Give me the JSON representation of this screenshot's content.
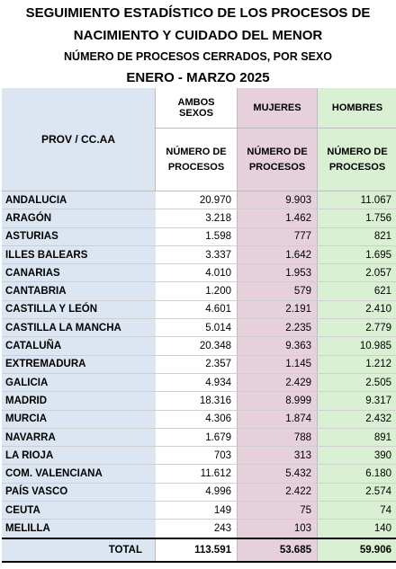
{
  "header": {
    "title_line1": "SEGUIMIENTO ESTADÍSTICO DE LOS PROCESOS  DE",
    "title_line2": "NACIMIENTO Y CUIDADO DEL MENOR",
    "subtitle": "NÚMERO DE PROCESOS CERRADOS, POR SEXO",
    "period": "ENERO - MARZO 2025"
  },
  "columns": {
    "prov": "PROV / CC.AA",
    "ambos_l1": "AMBOS",
    "ambos_l2": "SEXOS",
    "mujeres": "MUJERES",
    "hombres": "HOMBRES",
    "sub_l1": "NÚMERO DE",
    "sub_l2": "PROCESOS"
  },
  "colors": {
    "prov": "#dce6f2",
    "mujeres": "#e6d0dc",
    "hombres": "#d9f0d3"
  },
  "rows": [
    {
      "name": "ANDALUCIA",
      "ambos": "20.970",
      "mujeres": "9.903",
      "hombres": "11.067"
    },
    {
      "name": "ARAGÓN",
      "ambos": "3.218",
      "mujeres": "1.462",
      "hombres": "1.756"
    },
    {
      "name": "ASTURIAS",
      "ambos": "1.598",
      "mujeres": "777",
      "hombres": "821"
    },
    {
      "name": "ILLES BALEARS",
      "ambos": "3.337",
      "mujeres": "1.642",
      "hombres": "1.695"
    },
    {
      "name": "CANARIAS",
      "ambos": "4.010",
      "mujeres": "1.953",
      "hombres": "2.057"
    },
    {
      "name": "CANTABRIA",
      "ambos": "1.200",
      "mujeres": "579",
      "hombres": "621"
    },
    {
      "name": "CASTILLA Y LEÓN",
      "ambos": "4.601",
      "mujeres": "2.191",
      "hombres": "2.410"
    },
    {
      "name": "CASTILLA LA MANCHA",
      "ambos": "5.014",
      "mujeres": "2.235",
      "hombres": "2.779"
    },
    {
      "name": "CATALUÑA",
      "ambos": "20.348",
      "mujeres": "9.363",
      "hombres": "10.985"
    },
    {
      "name": "EXTREMADURA",
      "ambos": "2.357",
      "mujeres": "1.145",
      "hombres": "1.212"
    },
    {
      "name": "GALICIA",
      "ambos": "4.934",
      "mujeres": "2.429",
      "hombres": "2.505"
    },
    {
      "name": "MADRID",
      "ambos": "18.316",
      "mujeres": "8.999",
      "hombres": "9.317"
    },
    {
      "name": "MURCIA",
      "ambos": "4.306",
      "mujeres": "1.874",
      "hombres": "2.432"
    },
    {
      "name": "NAVARRA",
      "ambos": "1.679",
      "mujeres": "788",
      "hombres": "891"
    },
    {
      "name": "LA RIOJA",
      "ambos": "703",
      "mujeres": "313",
      "hombres": "390"
    },
    {
      "name": "COM. VALENCIANA",
      "ambos": "11.612",
      "mujeres": "5.432",
      "hombres": "6.180"
    },
    {
      "name": "PAÍS VASCO",
      "ambos": "4.996",
      "mujeres": "2.422",
      "hombres": "2.574"
    },
    {
      "name": "CEUTA",
      "ambos": "149",
      "mujeres": "75",
      "hombres": "74"
    },
    {
      "name": "MELILLA",
      "ambos": "243",
      "mujeres": "103",
      "hombres": "140"
    }
  ],
  "total": {
    "label": "TOTAL",
    "ambos": "113.591",
    "mujeres": "53.685",
    "hombres": "59.906"
  }
}
